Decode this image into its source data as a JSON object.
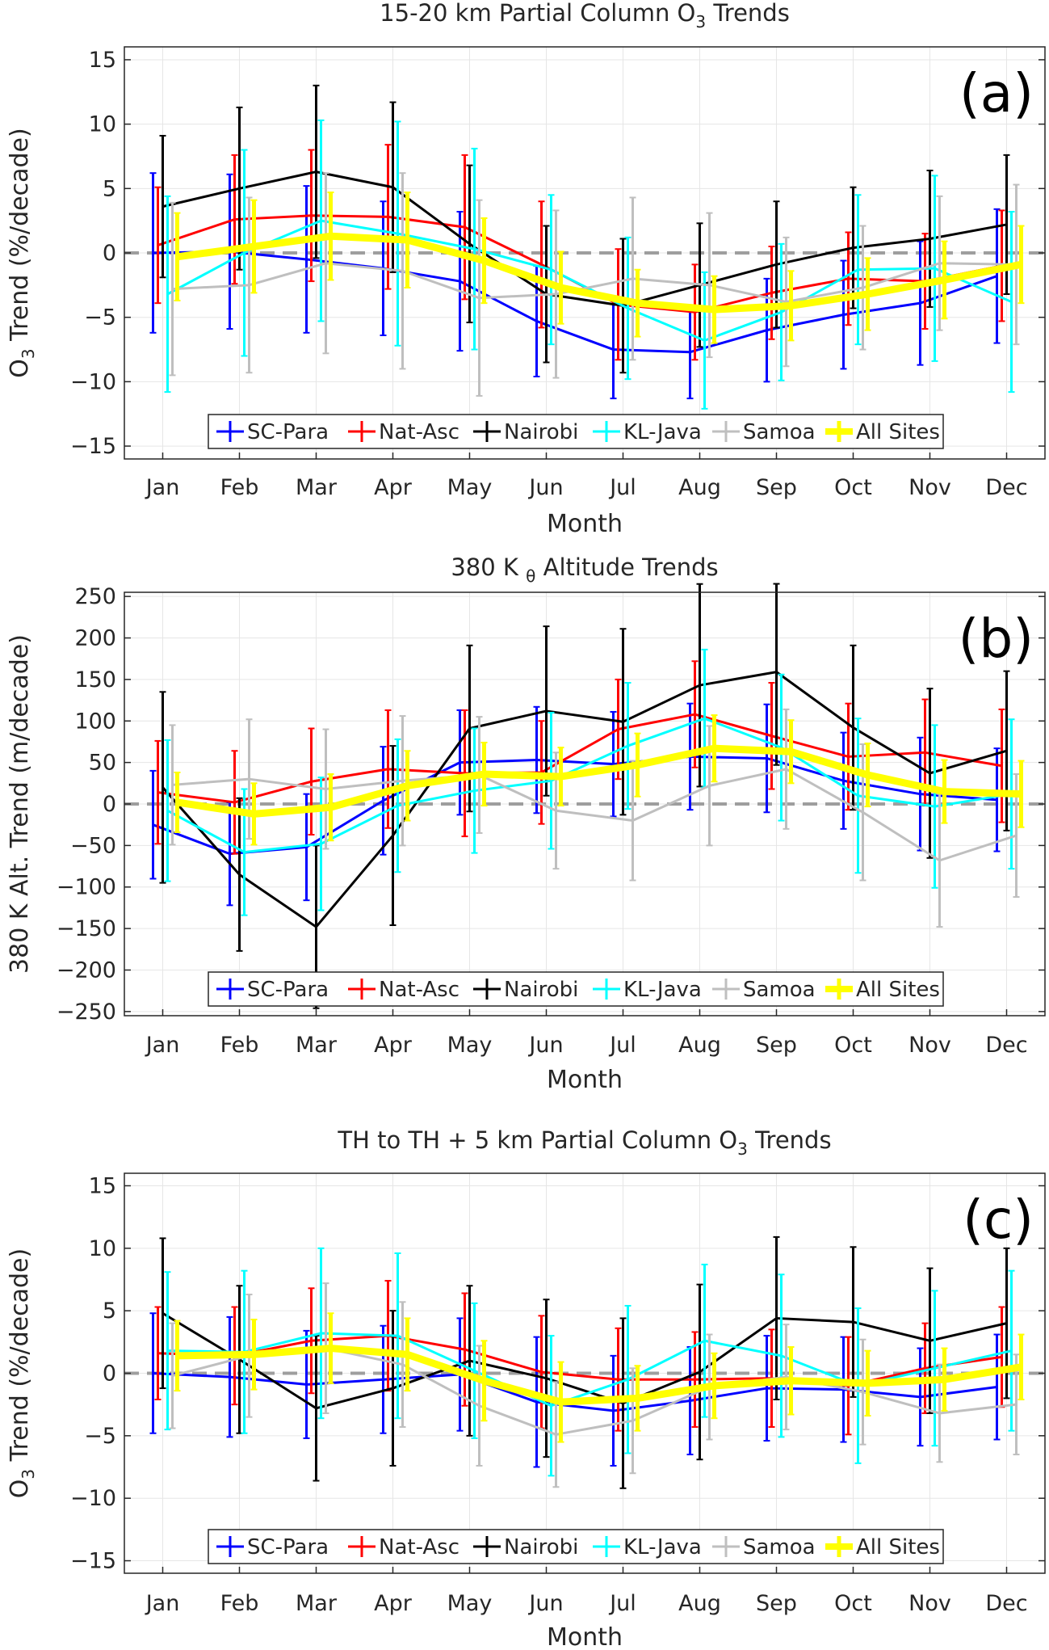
{
  "months": [
    "Jan",
    "Feb",
    "Mar",
    "Apr",
    "May",
    "Jun",
    "Jul",
    "Aug",
    "Sep",
    "Oct",
    "Nov",
    "Dec"
  ],
  "colors": {
    "SC-Para": "#0000ff",
    "Nat-Asc": "#ff0000",
    "Nairobi": "#000000",
    "KL-Java": "#00ffff",
    "Samoa": "#bfbfbf",
    "All Sites": "#ffff00"
  },
  "chart_data": [
    {
      "type": "line",
      "panel": "(a)",
      "title_main": "15-20 km Partial Column O",
      "title_sub": "3",
      "title_tail": " Trends",
      "ylabel_main": "O",
      "ylabel_sub": "3",
      "ylabel_tail": " Trend (%/decade)",
      "xlabel": "Month",
      "ylim": [
        -16,
        16
      ],
      "yticks": [
        -15,
        -10,
        -5,
        0,
        5,
        10,
        15
      ],
      "grid": true,
      "legend": "bottom",
      "series": [
        {
          "name": "SC-Para",
          "values": [
            0,
            0.1,
            -0.5,
            -1.2,
            -2.2,
            -5.3,
            -7.5,
            -7.7,
            -6,
            -4.8,
            -3.9,
            -1.8
          ],
          "err": [
            6.2,
            6,
            5.7,
            5.2,
            5.4,
            4.3,
            3.8,
            3.6,
            4,
            4.2,
            4.8,
            5.2
          ]
        },
        {
          "name": "Nat-Asc",
          "values": [
            0.6,
            2.6,
            2.9,
            2.8,
            2,
            -0.9,
            -4,
            -4.6,
            -3.1,
            -2,
            -2.2,
            -1
          ],
          "err": [
            4.5,
            5,
            5.1,
            5.6,
            5.6,
            4.9,
            4.3,
            3.7,
            3.6,
            3.6,
            3.7,
            4.3
          ]
        },
        {
          "name": "Nairobi",
          "values": [
            3.6,
            5,
            6.3,
            5.1,
            0.7,
            -3.2,
            -4.1,
            -2.5,
            -0.9,
            0.4,
            1.1,
            2.2
          ],
          "err": [
            5.5,
            6.3,
            6.7,
            6.6,
            6.1,
            5.3,
            5.2,
            4.8,
            4.9,
            4.7,
            5.3,
            5.4
          ]
        },
        {
          "name": "KL-Java",
          "values": [
            -3.2,
            0,
            2.5,
            1.5,
            0.3,
            -1.3,
            -4.3,
            -6.8,
            -4.6,
            -1.3,
            -1.2,
            -3.8
          ],
          "err": [
            7.6,
            8,
            7.8,
            8.7,
            7.8,
            5.8,
            5.5,
            5.3,
            5.3,
            5.8,
            7.2,
            7
          ]
        },
        {
          "name": "Samoa",
          "values": [
            -2.8,
            -2.5,
            -0.8,
            -1.4,
            -3.5,
            -3.2,
            -2,
            -2.5,
            -3.8,
            -2.7,
            -0.8,
            -0.9
          ],
          "err": [
            6.7,
            6.8,
            7,
            7.6,
            7.6,
            6.5,
            6.3,
            5.6,
            5,
            4.8,
            5.2,
            6.2
          ]
        },
        {
          "name": "All Sites",
          "values": [
            -0.3,
            0.5,
            1.3,
            1,
            -0.6,
            -2.7,
            -3.9,
            -4.4,
            -4.1,
            -3.2,
            -2.1,
            -0.9
          ],
          "err": [
            3.4,
            3.6,
            3.4,
            3.7,
            3.3,
            2.8,
            2.6,
            2.6,
            2.7,
            2.8,
            3,
            3
          ]
        }
      ]
    },
    {
      "type": "line",
      "panel": "(b)",
      "title_main": "380 K ",
      "title_sub": "θ",
      "title_tail": " Altitude Trends",
      "ylabel_main": "380 K Alt. Trend (m/decade)",
      "ylabel_sub": "",
      "ylabel_tail": "",
      "xlabel": "Month",
      "ylim": [
        -255,
        255
      ],
      "yticks": [
        -250,
        -200,
        -150,
        -100,
        -50,
        0,
        50,
        100,
        150,
        200,
        250
      ],
      "grid": true,
      "legend": "bottom",
      "series": [
        {
          "name": "SC-Para",
          "values": [
            -25,
            -60,
            -52,
            4,
            50,
            53,
            48,
            57,
            55,
            28,
            12,
            5
          ],
          "err": [
            65,
            62,
            64,
            65,
            63,
            64,
            63,
            64,
            65,
            58,
            68,
            62
          ]
        },
        {
          "name": "Nat-Asc",
          "values": [
            14,
            2,
            27,
            42,
            37,
            38,
            90,
            108,
            82,
            57,
            62,
            46
          ],
          "err": [
            62,
            62,
            64,
            71,
            76,
            62,
            60,
            64,
            64,
            64,
            64,
            68
          ]
        },
        {
          "name": "Nairobi",
          "values": [
            20,
            -85,
            -148,
            -38,
            91,
            112,
            99,
            143,
            159,
            92,
            37,
            64
          ],
          "err": [
            115,
            92,
            98,
            108,
            100,
            102,
            112,
            122,
            112,
            99,
            102,
            96
          ]
        },
        {
          "name": "KL-Java",
          "values": [
            -8,
            -58,
            -48,
            -2,
            16,
            28,
            70,
            103,
            68,
            10,
            -3,
            12
          ],
          "err": [
            85,
            76,
            80,
            80,
            75,
            82,
            76,
            83,
            88,
            93,
            98,
            90
          ]
        },
        {
          "name": "Samoa",
          "values": [
            23,
            30,
            18,
            28,
            35,
            -8,
            -20,
            22,
            42,
            -10,
            -68,
            -38
          ],
          "err": [
            72,
            72,
            72,
            78,
            70,
            70,
            72,
            72,
            72,
            82,
            80,
            74
          ]
        },
        {
          "name": "All Sites",
          "values": [
            2,
            -12,
            -4,
            22,
            36,
            33,
            47,
            67,
            63,
            35,
            15,
            12
          ],
          "err": [
            36,
            37,
            40,
            42,
            38,
            35,
            38,
            40,
            38,
            38,
            38,
            40
          ]
        }
      ]
    },
    {
      "type": "line",
      "panel": "(c)",
      "title_main": "TH to TH + 5 km Partial Column O",
      "title_sub": "3",
      "title_tail": " Trends",
      "ylabel_main": "O",
      "ylabel_sub": "3",
      "ylabel_tail": " Trend (%/decade)",
      "xlabel": "Month",
      "ylim": [
        -16,
        16
      ],
      "yticks": [
        -15,
        -10,
        -5,
        0,
        5,
        10,
        15
      ],
      "grid": true,
      "legend": "bottom",
      "series": [
        {
          "name": "SC-Para",
          "values": [
            0,
            -0.3,
            -0.9,
            -0.5,
            -0.1,
            -2.3,
            -3,
            -2.2,
            -1.2,
            -1.3,
            -1.9,
            -1.1
          ],
          "err": [
            4.8,
            4.8,
            4.3,
            4.3,
            4.5,
            5.2,
            4.4,
            4.3,
            4.2,
            4.2,
            3.9,
            4.2
          ]
        },
        {
          "name": "Nat-Asc",
          "values": [
            1.6,
            1.4,
            2.6,
            3,
            1.9,
            0.1,
            -0.5,
            -0.5,
            -0.4,
            -1,
            0.4,
            1.3
          ],
          "err": [
            3.7,
            3.9,
            4.2,
            4.4,
            4.5,
            4.5,
            4.1,
            3.8,
            3.9,
            3.9,
            3.6,
            4
          ]
        },
        {
          "name": "Nairobi",
          "values": [
            4.8,
            1.1,
            -2.8,
            -1.2,
            1,
            -0.4,
            -2.4,
            0.1,
            4.4,
            4.1,
            2.6,
            4
          ],
          "err": [
            6,
            5.9,
            5.8,
            6.2,
            6,
            6.3,
            6.8,
            7,
            6.5,
            6,
            5.8,
            6
          ]
        },
        {
          "name": "KL-Java",
          "values": [
            1.8,
            1.7,
            3.2,
            3,
            0.2,
            -2.6,
            -0.5,
            2.6,
            1.4,
            -1,
            0.4,
            1.8
          ],
          "err": [
            6.3,
            6.5,
            6.8,
            6.6,
            5.4,
            5.6,
            5.9,
            6.1,
            6.5,
            6.2,
            6.2,
            6.4
          ]
        },
        {
          "name": "Samoa",
          "values": [
            -0.2,
            1.4,
            2,
            0.7,
            -2.6,
            -4.9,
            -3.8,
            -1.1,
            -0.3,
            -1.5,
            -3.2,
            -2.5
          ],
          "err": [
            4.2,
            4.9,
            5.2,
            5,
            4.8,
            4.2,
            4.2,
            4.2,
            4.2,
            4.2,
            3.9,
            4
          ]
        },
        {
          "name": "All Sites",
          "values": [
            1.4,
            1.5,
            2,
            1.5,
            -0.6,
            -2.3,
            -2,
            -1,
            -0.6,
            -0.8,
            -0.5,
            0.5
          ],
          "err": [
            2.8,
            2.8,
            2.8,
            2.9,
            3.2,
            3.2,
            2.6,
            2.6,
            2.7,
            2.6,
            2.5,
            2.6
          ]
        }
      ]
    }
  ]
}
